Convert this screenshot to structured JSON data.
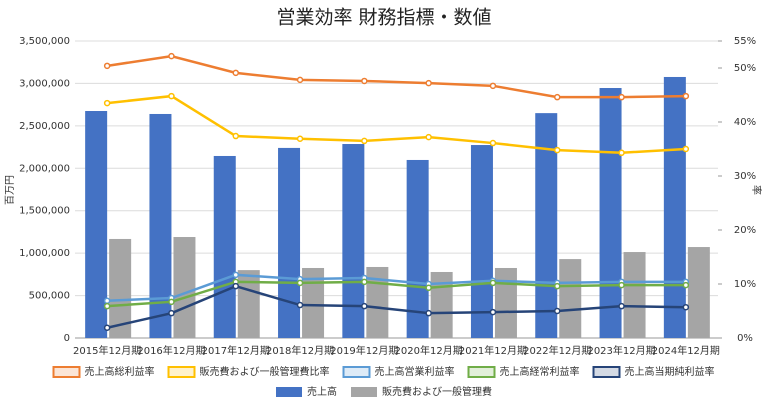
{
  "chart_data": {
    "type": "bar+line",
    "title": "営業効率 財務指標・数値",
    "y_label": "百万円",
    "y2_label": "率",
    "categories": [
      "2015年12月期",
      "2016年12月期",
      "2017年12月期",
      "2018年12月期",
      "2019年12月期",
      "2020年12月期",
      "2021年12月期",
      "2022年12月期",
      "2023年12月期",
      "2024年12月期"
    ],
    "ylim": [
      0,
      3500000
    ],
    "yticks": [
      0,
      {
        "value": 500000,
        "label": "500,000"
      },
      {
        "value": 1000000,
        "label": "1,000,000"
      },
      {
        "value": 1500000,
        "label": "1,500,000"
      },
      {
        "value": 2000000,
        "label": "2,000,000"
      },
      {
        "value": 2500000,
        "label": "2,500,000"
      },
      {
        "value": 3000000,
        "label": "3,000,000"
      },
      {
        "value": 3500000,
        "label": "3,500,000"
      }
    ],
    "y2lim": [
      0,
      55
    ],
    "y2ticks": [
      {
        "value": 0,
        "label": "0%"
      },
      {
        "value": 10,
        "label": "10%"
      },
      {
        "value": 20,
        "label": "20%"
      },
      {
        "value": 30,
        "label": "30%"
      },
      {
        "value": 40,
        "label": "40%"
      },
      {
        "value": 50,
        "label": "50%"
      },
      {
        "value": 55,
        "label": "55%"
      }
    ],
    "grid": true,
    "series": [
      {
        "name": "売上高総利益率",
        "type": "line",
        "axis": "y2",
        "color": "#ed7d31",
        "values": [
          50.4,
          52.2,
          49.1,
          47.8,
          47.6,
          47.2,
          46.7,
          44.6,
          44.6,
          44.8
        ]
      },
      {
        "name": "販売費および一般管理費比率",
        "type": "line",
        "axis": "y2",
        "color": "#ffc000",
        "values": [
          43.5,
          44.8,
          37.4,
          36.9,
          36.5,
          37.2,
          36.1,
          34.8,
          34.3,
          35.0
        ]
      },
      {
        "name": "売上高営業利益率",
        "type": "line",
        "axis": "y2",
        "color": "#5b9bd5",
        "values": [
          6.9,
          7.4,
          11.7,
          10.9,
          11.1,
          10.0,
          10.6,
          10.2,
          10.4,
          10.4
        ]
      },
      {
        "name": "売上高経常利益率",
        "type": "line",
        "axis": "y2",
        "color": "#70ad47",
        "values": [
          5.9,
          6.7,
          10.4,
          10.2,
          10.4,
          9.3,
          10.2,
          9.6,
          9.8,
          9.8
        ]
      },
      {
        "name": "売上高当期純利益率",
        "type": "line",
        "axis": "y2",
        "color": "#264478",
        "values": [
          1.9,
          4.6,
          9.6,
          6.1,
          5.9,
          4.6,
          4.8,
          5.0,
          5.9,
          5.7
        ]
      },
      {
        "name": "売上高",
        "type": "bar",
        "color": "#4472c4",
        "values": [
          2675000,
          2640000,
          2145000,
          2240000,
          2286000,
          2098000,
          2274000,
          2650000,
          2946000,
          3076000
        ]
      },
      {
        "name": "販売費および一般管理費",
        "type": "bar",
        "color": "#a5a5a5",
        "values": [
          1167000,
          1190000,
          800000,
          825000,
          837000,
          778000,
          825000,
          930000,
          1013000,
          1072000
        ]
      }
    ]
  }
}
